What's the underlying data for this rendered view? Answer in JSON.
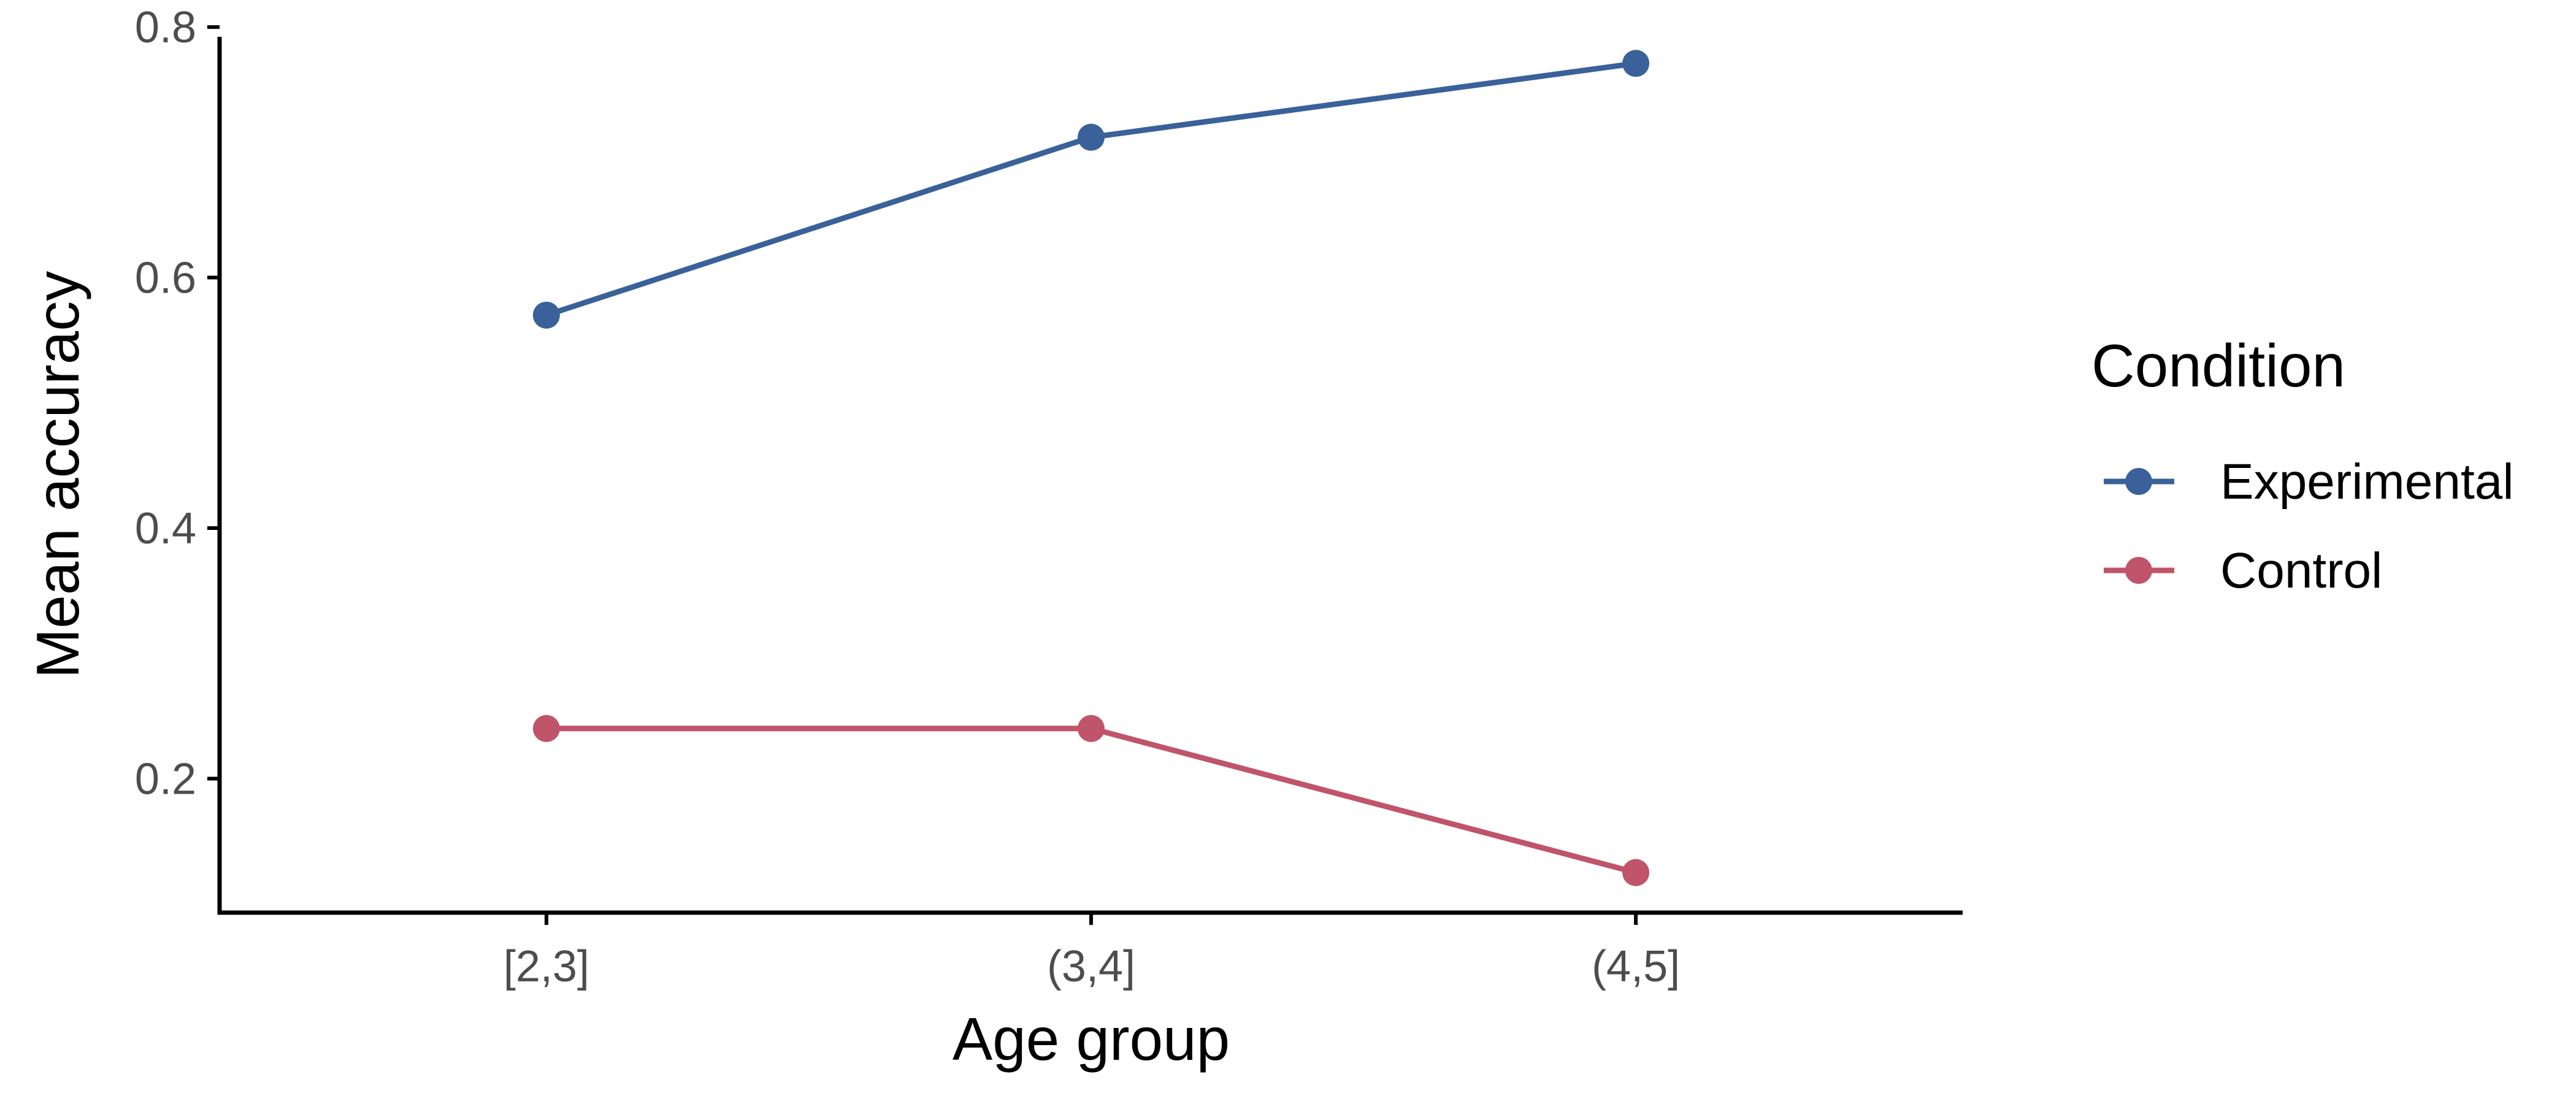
{
  "chart_data": {
    "type": "line",
    "title": "",
    "xlabel": "Age group",
    "ylabel": "Mean accuracy",
    "categories": [
      "[2,3]",
      "(3,4]",
      "(4,5]"
    ],
    "ylim": [
      0.093,
      0.802
    ],
    "yticks": [
      0.2,
      0.4,
      0.6,
      0.8
    ],
    "ytick_labels": [
      "0.2",
      "0.4",
      "0.6",
      "0.8"
    ],
    "grid": false,
    "legend": {
      "title": "Condition",
      "position": "right"
    },
    "series": [
      {
        "name": "Experimental",
        "color": "#3a6199",
        "values": [
          0.57,
          0.712,
          0.771
        ]
      },
      {
        "name": "Control",
        "color": "#c0546b",
        "values": [
          0.24,
          0.24,
          0.125
        ]
      }
    ]
  }
}
